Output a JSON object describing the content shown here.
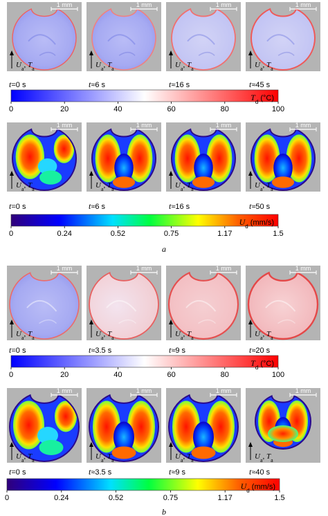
{
  "scale_bar_label": "1 mm",
  "axis_label": "U_a, T_a",
  "panel_a": {
    "label": "a",
    "temperature_row": {
      "times": [
        "t=0 s",
        "t≈6 s",
        "t≈16 s",
        "t≈45 s"
      ],
      "colorbar": {
        "title": "T_d (°C)",
        "ticks": [
          "0",
          "20",
          "40",
          "60",
          "80",
          "100"
        ]
      }
    },
    "velocity_row": {
      "times": [
        "t=0 s",
        "t≈6 s",
        "t≈16 s",
        "t≈50 s"
      ],
      "colorbar": {
        "title": "U_d (mm/s)",
        "ticks": [
          "0",
          "0.24",
          "0.52",
          "0.75",
          "1.17",
          "1.5"
        ]
      }
    }
  },
  "panel_b": {
    "label": "b",
    "temperature_row": {
      "times": [
        "t=0 s",
        "t≈3.5 s",
        "t≈9 s",
        "t≈20 s"
      ],
      "colorbar": {
        "title": "T_d (°C)",
        "ticks": [
          "0",
          "20",
          "40",
          "60",
          "80",
          "100"
        ]
      }
    },
    "velocity_row": {
      "times": [
        "t=0 s",
        "t≈3.5 s",
        "t≈9 s",
        "t≈40 s"
      ],
      "colorbar": {
        "title": "U_d (mm/s)",
        "ticks": [
          "0",
          "0.24",
          "0.52",
          "0.75",
          "1.17",
          "1.5"
        ]
      }
    }
  },
  "colors": {
    "temperature_scale": [
      "#0000ff",
      "#ffffff",
      "#ff0000"
    ],
    "velocity_scale": [
      "#30007a",
      "#0000ff",
      "#00e0ff",
      "#00ff00",
      "#ffff00",
      "#ff6000",
      "#ff0000"
    ],
    "image_background": "#b4b4b4"
  }
}
